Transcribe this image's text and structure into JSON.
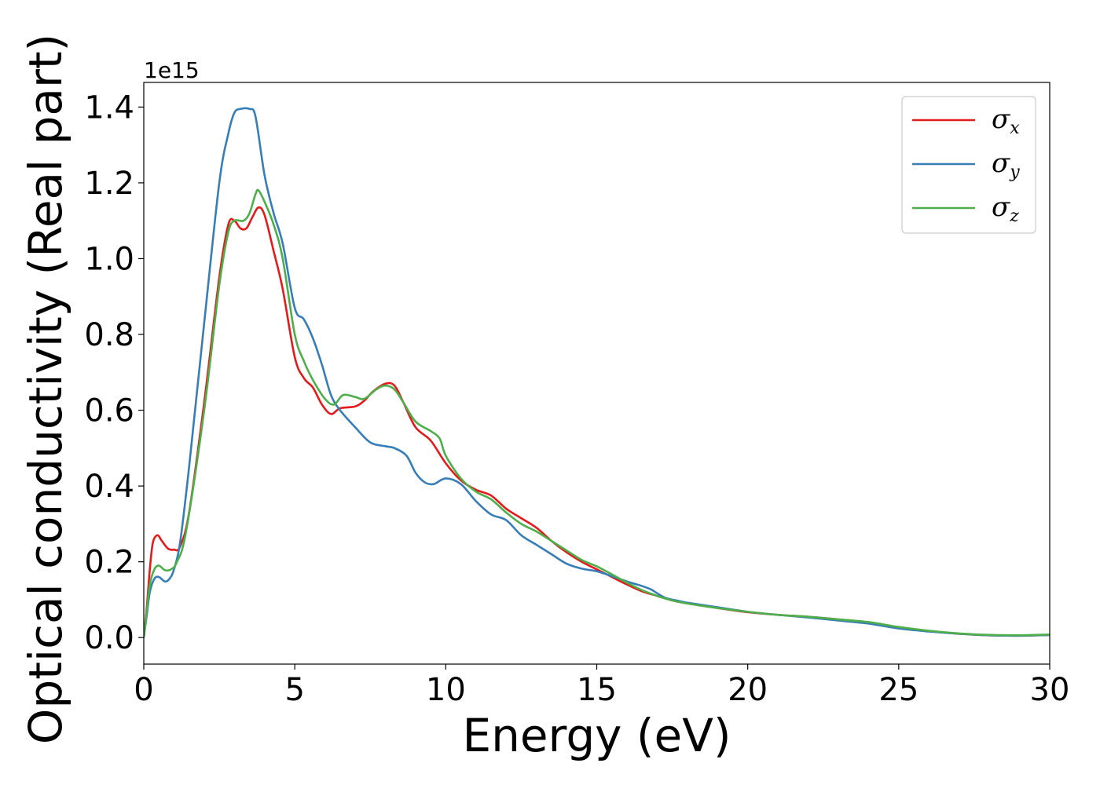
{
  "chart_data": {
    "type": "line",
    "title": "",
    "xlabel": "Energy (eV)",
    "ylabel": "Optical conductivity (Real part)",
    "y_offset_label": "1e15",
    "xlim": [
      0,
      30
    ],
    "ylim": [
      -0.07,
      1.465
    ],
    "xticks": [
      0,
      5,
      10,
      15,
      20,
      25,
      30
    ],
    "xtick_labels": [
      "0",
      "5",
      "10",
      "15",
      "20",
      "25",
      "30"
    ],
    "yticks": [
      0.0,
      0.2,
      0.4,
      0.6,
      0.8,
      1.0,
      1.2,
      1.4
    ],
    "ytick_labels": [
      "0.0",
      "0.2",
      "0.4",
      "0.6",
      "0.8",
      "1.0",
      "1.2",
      "1.4"
    ],
    "grid": false,
    "legend_position": "top-right",
    "series": [
      {
        "name": "σ",
        "subscript": "x",
        "color": "#e41a1c",
        "points": [
          [
            0,
            0
          ],
          [
            0.1,
            0.08
          ],
          [
            0.2,
            0.18
          ],
          [
            0.3,
            0.25
          ],
          [
            0.45,
            0.27
          ],
          [
            0.6,
            0.255
          ],
          [
            0.8,
            0.235
          ],
          [
            1.0,
            0.232
          ],
          [
            1.2,
            0.24
          ],
          [
            1.5,
            0.33
          ],
          [
            2.0,
            0.62
          ],
          [
            2.5,
            0.95
          ],
          [
            2.8,
            1.09
          ],
          [
            3.0,
            1.1
          ],
          [
            3.2,
            1.08
          ],
          [
            3.4,
            1.08
          ],
          [
            3.6,
            1.11
          ],
          [
            3.8,
            1.135
          ],
          [
            4.0,
            1.115
          ],
          [
            4.3,
            1.02
          ],
          [
            4.6,
            0.92
          ],
          [
            5.0,
            0.74
          ],
          [
            5.3,
            0.685
          ],
          [
            5.6,
            0.66
          ],
          [
            5.9,
            0.615
          ],
          [
            6.2,
            0.59
          ],
          [
            6.5,
            0.605
          ],
          [
            7.0,
            0.61
          ],
          [
            7.3,
            0.625
          ],
          [
            7.6,
            0.65
          ],
          [
            8.0,
            0.67
          ],
          [
            8.3,
            0.665
          ],
          [
            8.6,
            0.62
          ],
          [
            9.0,
            0.555
          ],
          [
            9.5,
            0.52
          ],
          [
            10.0,
            0.46
          ],
          [
            10.5,
            0.415
          ],
          [
            11.0,
            0.39
          ],
          [
            11.5,
            0.375
          ],
          [
            12.0,
            0.34
          ],
          [
            12.5,
            0.315
          ],
          [
            13.0,
            0.29
          ],
          [
            13.5,
            0.255
          ],
          [
            14.0,
            0.225
          ],
          [
            14.5,
            0.2
          ],
          [
            15.0,
            0.18
          ],
          [
            15.5,
            0.16
          ],
          [
            16.0,
            0.14
          ],
          [
            16.5,
            0.122
          ],
          [
            17.0,
            0.11
          ],
          [
            17.5,
            0.098
          ],
          [
            18.0,
            0.09
          ],
          [
            19.0,
            0.078
          ],
          [
            20.0,
            0.067
          ],
          [
            21.0,
            0.06
          ],
          [
            22.0,
            0.055
          ],
          [
            23.0,
            0.048
          ],
          [
            24.0,
            0.04
          ],
          [
            25.0,
            0.026
          ],
          [
            26.0,
            0.017
          ],
          [
            27.0,
            0.01
          ],
          [
            28.0,
            0.006
          ],
          [
            29.0,
            0.005
          ],
          [
            30.0,
            0.007
          ]
        ]
      },
      {
        "name": "σ",
        "subscript": "y",
        "color": "#377eb8",
        "points": [
          [
            0,
            0
          ],
          [
            0.1,
            0.06
          ],
          [
            0.2,
            0.12
          ],
          [
            0.35,
            0.155
          ],
          [
            0.5,
            0.16
          ],
          [
            0.7,
            0.148
          ],
          [
            0.85,
            0.155
          ],
          [
            1.0,
            0.18
          ],
          [
            1.2,
            0.25
          ],
          [
            1.5,
            0.45
          ],
          [
            2.0,
            0.83
          ],
          [
            2.5,
            1.2
          ],
          [
            2.8,
            1.33
          ],
          [
            3.0,
            1.385
          ],
          [
            3.2,
            1.395
          ],
          [
            3.5,
            1.395
          ],
          [
            3.7,
            1.375
          ],
          [
            4.0,
            1.22
          ],
          [
            4.3,
            1.12
          ],
          [
            4.6,
            1.04
          ],
          [
            5.0,
            0.87
          ],
          [
            5.3,
            0.84
          ],
          [
            5.6,
            0.79
          ],
          [
            5.9,
            0.72
          ],
          [
            6.2,
            0.64
          ],
          [
            6.5,
            0.6
          ],
          [
            7.0,
            0.555
          ],
          [
            7.5,
            0.515
          ],
          [
            8.0,
            0.505
          ],
          [
            8.3,
            0.5
          ],
          [
            8.7,
            0.48
          ],
          [
            9.0,
            0.435
          ],
          [
            9.3,
            0.41
          ],
          [
            9.6,
            0.405
          ],
          [
            10.0,
            0.42
          ],
          [
            10.5,
            0.405
          ],
          [
            11.0,
            0.36
          ],
          [
            11.5,
            0.325
          ],
          [
            12.0,
            0.31
          ],
          [
            12.5,
            0.27
          ],
          [
            13.0,
            0.245
          ],
          [
            13.5,
            0.22
          ],
          [
            14.0,
            0.195
          ],
          [
            14.5,
            0.182
          ],
          [
            15.0,
            0.175
          ],
          [
            15.5,
            0.162
          ],
          [
            16.0,
            0.148
          ],
          [
            16.5,
            0.136
          ],
          [
            16.8,
            0.127
          ],
          [
            17.0,
            0.117
          ],
          [
            17.3,
            0.104
          ],
          [
            17.7,
            0.097
          ],
          [
            18.0,
            0.092
          ],
          [
            19.0,
            0.08
          ],
          [
            20.0,
            0.068
          ],
          [
            21.0,
            0.06
          ],
          [
            22.0,
            0.053
          ],
          [
            23.0,
            0.045
          ],
          [
            24.0,
            0.037
          ],
          [
            25.0,
            0.024
          ],
          [
            26.0,
            0.016
          ],
          [
            27.0,
            0.01
          ],
          [
            28.0,
            0.006
          ],
          [
            29.0,
            0.005
          ],
          [
            30.0,
            0.007
          ]
        ]
      },
      {
        "name": "σ",
        "subscript": "z",
        "color": "#4daf4a",
        "points": [
          [
            0,
            0
          ],
          [
            0.1,
            0.07
          ],
          [
            0.2,
            0.14
          ],
          [
            0.35,
            0.18
          ],
          [
            0.5,
            0.19
          ],
          [
            0.7,
            0.178
          ],
          [
            0.9,
            0.18
          ],
          [
            1.1,
            0.2
          ],
          [
            1.4,
            0.28
          ],
          [
            2.0,
            0.6
          ],
          [
            2.5,
            0.93
          ],
          [
            2.8,
            1.07
          ],
          [
            3.0,
            1.1
          ],
          [
            3.3,
            1.1
          ],
          [
            3.5,
            1.12
          ],
          [
            3.7,
            1.17
          ],
          [
            3.8,
            1.18
          ],
          [
            4.0,
            1.15
          ],
          [
            4.3,
            1.09
          ],
          [
            4.6,
            1.0
          ],
          [
            5.0,
            0.8
          ],
          [
            5.3,
            0.73
          ],
          [
            5.6,
            0.68
          ],
          [
            6.0,
            0.63
          ],
          [
            6.3,
            0.615
          ],
          [
            6.6,
            0.64
          ],
          [
            7.0,
            0.635
          ],
          [
            7.3,
            0.63
          ],
          [
            7.7,
            0.655
          ],
          [
            8.0,
            0.665
          ],
          [
            8.3,
            0.655
          ],
          [
            8.6,
            0.62
          ],
          [
            9.0,
            0.57
          ],
          [
            9.5,
            0.545
          ],
          [
            9.8,
            0.525
          ],
          [
            10.0,
            0.48
          ],
          [
            10.5,
            0.42
          ],
          [
            11.0,
            0.385
          ],
          [
            11.5,
            0.365
          ],
          [
            12.0,
            0.33
          ],
          [
            12.5,
            0.3
          ],
          [
            13.0,
            0.28
          ],
          [
            13.5,
            0.255
          ],
          [
            14.0,
            0.23
          ],
          [
            14.5,
            0.205
          ],
          [
            15.0,
            0.188
          ],
          [
            15.5,
            0.167
          ],
          [
            16.0,
            0.145
          ],
          [
            16.5,
            0.125
          ],
          [
            17.0,
            0.11
          ],
          [
            17.5,
            0.098
          ],
          [
            18.0,
            0.09
          ],
          [
            19.0,
            0.078
          ],
          [
            20.0,
            0.068
          ],
          [
            21.0,
            0.06
          ],
          [
            22.0,
            0.055
          ],
          [
            23.0,
            0.048
          ],
          [
            24.0,
            0.041
          ],
          [
            25.0,
            0.028
          ],
          [
            26.0,
            0.018
          ],
          [
            27.0,
            0.011
          ],
          [
            28.0,
            0.007
          ],
          [
            29.0,
            0.006
          ],
          [
            30.0,
            0.008
          ]
        ]
      }
    ]
  }
}
